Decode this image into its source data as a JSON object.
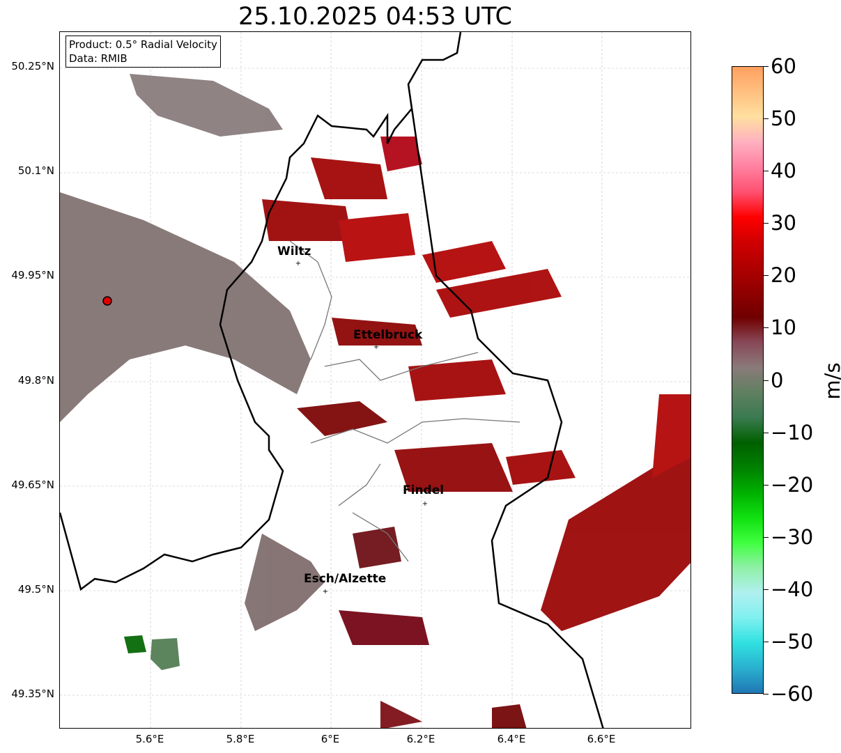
{
  "title": "25.10.2025 04:53 UTC",
  "info": {
    "product": "Product: 0.5° Radial Velocity",
    "data": "Data: RMIB"
  },
  "lat_labels": [
    "50.25°N",
    "50.1°N",
    "49.95°N",
    "49.8°N",
    "49.65°N",
    "49.5°N",
    "49.35°N"
  ],
  "lon_labels": [
    "5.6°E",
    "5.8°E",
    "6°E",
    "6.2°E",
    "6.4°E",
    "6.6°E"
  ],
  "cities": [
    {
      "name": "Wiltz"
    },
    {
      "name": "Ettelbruck"
    },
    {
      "name": "Findel"
    },
    {
      "name": "Esch/Alzette"
    }
  ],
  "colorbar": {
    "unit": "m/s",
    "range": [
      -60,
      60
    ],
    "ticks": [
      "60",
      "50",
      "40",
      "30",
      "20",
      "10",
      "0",
      "−10",
      "−20",
      "−30",
      "−40",
      "−50",
      "−60"
    ],
    "colors": [
      "#1f77b4",
      "#2ab0d0",
      "#30e0e0",
      "#80f0f0",
      "#b0f0f0",
      "#90f0a8",
      "#40ff40",
      "#10e010",
      "#00b000",
      "#008000",
      "#006000",
      "#3a7a50",
      "#608060",
      "#8a7a7a",
      "#884858",
      "#700000",
      "#900000",
      "#b00000",
      "#d00000",
      "#ff0000",
      "#ff5070",
      "#ff80a0",
      "#ffb0c0",
      "#ffe0a0",
      "#ffc080",
      "#ffa060"
    ]
  },
  "radar_site_color": "#e00000"
}
